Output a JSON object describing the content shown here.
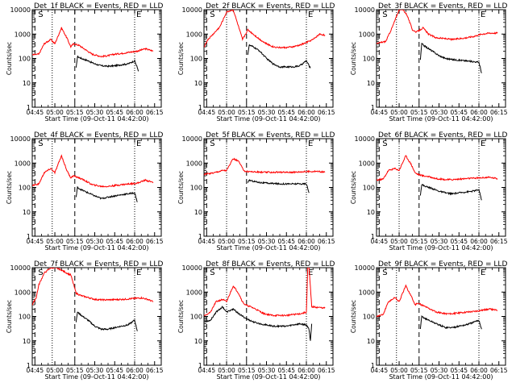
{
  "figure": {
    "x_ticks": [
      "04:45",
      "05:00",
      "05:15",
      "05:30",
      "05:45",
      "06:00",
      "06:15"
    ],
    "x_tick_minutes": [
      285,
      300,
      315,
      330,
      345,
      360,
      375
    ],
    "xlim_minutes": [
      283,
      380
    ],
    "ylim": [
      1,
      10000
    ],
    "y_scale": "log",
    "y_ticks": [
      "1",
      "10",
      "100",
      "1000",
      "10000"
    ],
    "y_tick_values": [
      1,
      10,
      100,
      1000,
      10000
    ],
    "ylabel": "Counts/sec",
    "xlabel": "Start Time (09-Oct-11 04:42:00)",
    "series_colors": {
      "events": "#000000",
      "lld": "#ff0000"
    },
    "marker_labels": {
      "s": "S",
      "e": "E"
    }
  },
  "chart_data": [
    {
      "type": "line",
      "title": "Det_1f BLACK = Events, RED = LLD",
      "markers": {
        "dashed": [
          285,
          315
        ],
        "dotted": [
          298,
          360
        ]
      },
      "series": [
        {
          "name": "Events",
          "x": [
            316,
            317,
            320,
            325,
            330,
            335,
            340,
            345,
            350,
            355,
            360,
            363
          ],
          "y": [
            40,
            120,
            100,
            80,
            60,
            50,
            48,
            50,
            55,
            60,
            80,
            30
          ]
        },
        {
          "name": "LLD",
          "x": [
            283,
            288,
            292,
            297,
            300,
            305,
            309,
            312,
            314,
            318,
            322,
            328,
            335,
            340,
            345,
            350,
            356,
            362,
            368,
            374
          ],
          "y": [
            140,
            150,
            400,
            600,
            400,
            1800,
            700,
            300,
            400,
            350,
            250,
            150,
            120,
            130,
            150,
            160,
            180,
            200,
            250,
            200
          ]
        }
      ]
    },
    {
      "type": "line",
      "title": "Det_2f BLACK = Events, RED = LLD",
      "markers": {
        "dashed": [
          285,
          315
        ],
        "dotted": [
          300,
          360
        ]
      },
      "series": [
        {
          "name": "Events",
          "x": [
            316,
            317,
            320,
            325,
            330,
            335,
            340,
            345,
            350,
            355,
            360,
            363
          ],
          "y": [
            150,
            350,
            300,
            200,
            100,
            60,
            45,
            45,
            45,
            50,
            80,
            40
          ]
        },
        {
          "name": "LLD",
          "x": [
            283,
            286,
            290,
            295,
            300,
            305,
            309,
            312,
            316,
            320,
            325,
            330,
            335,
            340,
            345,
            350,
            355,
            360,
            365,
            370,
            374
          ],
          "y": [
            300,
            600,
            1000,
            2000,
            8000,
            10000,
            2000,
            600,
            1500,
            1000,
            600,
            400,
            300,
            280,
            280,
            300,
            350,
            450,
            600,
            1000,
            900
          ]
        }
      ]
    },
    {
      "type": "line",
      "title": "Det_3f BLACK = Events, RED = LLD",
      "markers": {
        "dashed": [
          285,
          315
        ],
        "dotted": [
          298,
          360
        ]
      },
      "series": [
        {
          "name": "Events",
          "x": [
            316,
            317,
            320,
            325,
            330,
            335,
            340,
            345,
            350,
            355,
            360,
            362
          ],
          "y": [
            90,
            400,
            300,
            200,
            130,
            100,
            90,
            85,
            80,
            75,
            70,
            25
          ]
        },
        {
          "name": "LLD",
          "x": [
            283,
            286,
            290,
            295,
            300,
            303,
            306,
            310,
            313,
            318,
            322,
            328,
            335,
            340,
            345,
            350,
            356,
            362,
            368,
            374
          ],
          "y": [
            400,
            450,
            500,
            2000,
            10000,
            10000,
            6000,
            1500,
            1200,
            1800,
            1000,
            700,
            650,
            600,
            650,
            700,
            800,
            1000,
            1100,
            1100
          ]
        }
      ]
    },
    {
      "type": "line",
      "title": "Det_4f BLACK = Events, RED = LLD",
      "markers": {
        "dashed": [
          285,
          315
        ],
        "dotted": [
          298,
          360
        ]
      },
      "series": [
        {
          "name": "Events",
          "x": [
            316,
            317,
            320,
            325,
            330,
            335,
            340,
            345,
            350,
            355,
            360,
            362
          ],
          "y": [
            40,
            100,
            80,
            60,
            45,
            35,
            40,
            45,
            50,
            55,
            60,
            25
          ]
        },
        {
          "name": "LLD",
          "x": [
            283,
            288,
            292,
            297,
            300,
            305,
            309,
            312,
            314,
            318,
            322,
            328,
            335,
            340,
            345,
            350,
            356,
            362,
            368,
            374
          ],
          "y": [
            120,
            140,
            400,
            600,
            400,
            2000,
            500,
            250,
            300,
            250,
            200,
            130,
            110,
            110,
            120,
            130,
            140,
            150,
            200,
            160
          ]
        }
      ]
    },
    {
      "type": "line",
      "title": "Det_5f BLACK = Events, RED = LLD",
      "markers": {
        "dashed": [
          285,
          315
        ],
        "dotted": [
          300,
          360
        ]
      },
      "series": [
        {
          "name": "Events",
          "x": [
            316,
            317,
            320,
            325,
            330,
            335,
            340,
            345,
            350,
            355,
            360,
            362
          ],
          "y": [
            150,
            200,
            180,
            160,
            150,
            145,
            140,
            140,
            140,
            140,
            140,
            60
          ]
        },
        {
          "name": "LLD",
          "x": [
            283,
            288,
            292,
            297,
            300,
            305,
            309,
            312,
            314,
            318,
            322,
            328,
            335,
            340,
            345,
            350,
            356,
            362,
            368,
            374
          ],
          "y": [
            350,
            380,
            420,
            500,
            500,
            1500,
            1200,
            600,
            450,
            450,
            430,
            420,
            420,
            420,
            420,
            420,
            440,
            450,
            460,
            420
          ]
        }
      ]
    },
    {
      "type": "line",
      "title": "Det_6f BLACK = Events, RED = LLD",
      "markers": {
        "dashed": [
          285,
          315
        ],
        "dotted": [
          300,
          360
        ]
      },
      "series": [
        {
          "name": "Events",
          "x": [
            316,
            317,
            320,
            325,
            330,
            335,
            340,
            345,
            350,
            355,
            360,
            362
          ],
          "y": [
            50,
            130,
            110,
            90,
            70,
            60,
            55,
            60,
            65,
            70,
            80,
            30
          ]
        },
        {
          "name": "LLD",
          "x": [
            283,
            288,
            292,
            297,
            300,
            305,
            309,
            312,
            314,
            318,
            322,
            328,
            335,
            340,
            345,
            350,
            356,
            362,
            368,
            374
          ],
          "y": [
            200,
            220,
            500,
            600,
            500,
            2000,
            900,
            400,
            350,
            300,
            280,
            230,
            210,
            210,
            220,
            230,
            240,
            250,
            260,
            230
          ]
        }
      ]
    },
    {
      "type": "line",
      "title": "Det_7f BLACK = Events, RED = LLD",
      "markers": {
        "dashed": [
          285,
          315
        ],
        "dotted": [
          298,
          360
        ]
      },
      "series": [
        {
          "name": "Events",
          "x": [
            316,
            317,
            320,
            325,
            330,
            335,
            340,
            345,
            350,
            355,
            360,
            362
          ],
          "y": [
            60,
            150,
            110,
            70,
            40,
            30,
            30,
            35,
            40,
            45,
            70,
            25
          ]
        },
        {
          "name": "LLD",
          "x": [
            283,
            286,
            288,
            292,
            297,
            300,
            305,
            309,
            312,
            316,
            320,
            325,
            330,
            335,
            340,
            345,
            350,
            355,
            360,
            365,
            370,
            374
          ],
          "y": [
            300,
            600,
            2000,
            6000,
            10000,
            10000,
            8000,
            6000,
            5000,
            900,
            700,
            600,
            500,
            480,
            480,
            490,
            500,
            520,
            550,
            580,
            500,
            400
          ]
        }
      ]
    },
    {
      "type": "line",
      "title": "Det_8f BLACK = Events, RED = LLD",
      "markers": {
        "dashed": [
          285,
          315
        ],
        "dotted": [
          300,
          360
        ]
      },
      "series": [
        {
          "name": "Events",
          "x": [
            283,
            288,
            292,
            297,
            300,
            305,
            310,
            315,
            320,
            325,
            330,
            335,
            340,
            345,
            350,
            355,
            360,
            362,
            363,
            364
          ],
          "y": [
            60,
            70,
            150,
            250,
            150,
            200,
            120,
            80,
            60,
            50,
            45,
            40,
            40,
            40,
            45,
            50,
            45,
            30,
            10,
            50
          ]
        },
        {
          "name": "LLD",
          "x": [
            283,
            288,
            292,
            297,
            300,
            305,
            309,
            312,
            314,
            318,
            322,
            328,
            335,
            340,
            345,
            350,
            356,
            360,
            361,
            362,
            364,
            374
          ],
          "y": [
            110,
            150,
            400,
            500,
            400,
            1800,
            900,
            400,
            300,
            250,
            200,
            130,
            110,
            110,
            110,
            120,
            130,
            150,
            10000,
            10000,
            250,
            220
          ]
        }
      ]
    },
    {
      "type": "line",
      "title": "Det_9f BLACK = Events, RED = LLD",
      "markers": {
        "dashed": [
          285,
          315
        ],
        "dotted": [
          298,
          360
        ]
      },
      "series": [
        {
          "name": "Events",
          "x": [
            316,
            317,
            320,
            325,
            330,
            335,
            340,
            345,
            350,
            355,
            360,
            362
          ],
          "y": [
            30,
            100,
            80,
            60,
            45,
            35,
            35,
            40,
            45,
            55,
            70,
            30
          ]
        },
        {
          "name": "LLD",
          "x": [
            283,
            288,
            292,
            297,
            300,
            305,
            309,
            312,
            314,
            318,
            322,
            328,
            335,
            340,
            345,
            350,
            356,
            362,
            368,
            374
          ],
          "y": [
            100,
            120,
            400,
            600,
            400,
            1800,
            700,
            300,
            350,
            280,
            220,
            150,
            130,
            130,
            140,
            150,
            160,
            180,
            200,
            180
          ]
        }
      ]
    }
  ]
}
